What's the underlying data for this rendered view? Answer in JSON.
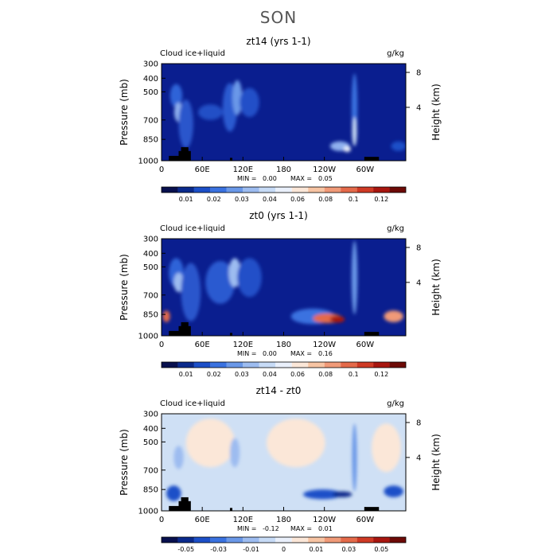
{
  "page_title": "SON",
  "chart_data": [
    {
      "type": "heatmap",
      "title": "zt14 (yrs 1-1)",
      "left_label": "Cloud ice+liquid",
      "right_label": "g/kg",
      "ylabel": "Pressure (mb)",
      "y2label": "Height (km)",
      "xticks": [
        "0",
        "60E",
        "120E",
        "180",
        "120W",
        "60W"
      ],
      "yticks": [
        "300",
        "400",
        "500",
        "700",
        "850",
        "1000"
      ],
      "y2ticks": [
        "8",
        "4"
      ],
      "stats": {
        "min_label": "MIN =",
        "min": "0.00",
        "max_label": "MAX =",
        "max": "0.05"
      },
      "colorbar": {
        "labels": [
          "0.01",
          "0.02",
          "0.03",
          "0.04",
          "0.06",
          "0.08",
          "0.1",
          "0.12"
        ],
        "colors": [
          "#08104e",
          "#0a2a8c",
          "#1c4fc8",
          "#3a72e0",
          "#6a98e8",
          "#9dbcf0",
          "#c7dbf6",
          "#eaf0fb",
          "#fbe7d8",
          "#f7c4a3",
          "#f09a78",
          "#e46a4a",
          "#cf3a25",
          "#a8160f",
          "#6d0a06"
        ]
      },
      "background": "#0a1e8f",
      "features": [
        {
          "x": 0.06,
          "y": 0.33,
          "rx": 0.025,
          "ry": 0.12,
          "color": "#2f63d8"
        },
        {
          "x": 0.07,
          "y": 0.5,
          "rx": 0.018,
          "ry": 0.1,
          "color": "#8fb0ee"
        },
        {
          "x": 0.1,
          "y": 0.62,
          "rx": 0.03,
          "ry": 0.25,
          "color": "#2a56cc"
        },
        {
          "x": 0.2,
          "y": 0.5,
          "rx": 0.05,
          "ry": 0.08,
          "color": "#244fc6"
        },
        {
          "x": 0.28,
          "y": 0.45,
          "rx": 0.03,
          "ry": 0.25,
          "color": "#2b5ad0"
        },
        {
          "x": 0.31,
          "y": 0.35,
          "rx": 0.02,
          "ry": 0.18,
          "color": "#6a98e8"
        },
        {
          "x": 0.36,
          "y": 0.4,
          "rx": 0.04,
          "ry": 0.15,
          "color": "#2450c8"
        },
        {
          "x": 0.79,
          "y": 0.45,
          "rx": 0.012,
          "ry": 0.35,
          "color": "#3a72e0"
        },
        {
          "x": 0.79,
          "y": 0.7,
          "rx": 0.01,
          "ry": 0.15,
          "color": "#c7dbf6"
        },
        {
          "x": 0.73,
          "y": 0.85,
          "rx": 0.04,
          "ry": 0.05,
          "color": "#8fb0ee"
        },
        {
          "x": 0.76,
          "y": 0.88,
          "rx": 0.015,
          "ry": 0.03,
          "color": "#eaf0fb"
        },
        {
          "x": 0.97,
          "y": 0.85,
          "rx": 0.03,
          "ry": 0.05,
          "color": "#1c4fc8"
        }
      ]
    },
    {
      "type": "heatmap",
      "title": "zt0 (yrs 1-1)",
      "left_label": "Cloud ice+liquid",
      "right_label": "g/kg",
      "ylabel": "Pressure (mb)",
      "y2label": "Height (km)",
      "xticks": [
        "0",
        "60E",
        "120E",
        "180",
        "120W",
        "60W"
      ],
      "yticks": [
        "300",
        "400",
        "500",
        "700",
        "850",
        "1000"
      ],
      "y2ticks": [
        "8",
        "4"
      ],
      "stats": {
        "min_label": "MIN =",
        "min": "0.00",
        "max_label": "MAX =",
        "max": "0.16"
      },
      "colorbar": {
        "labels": [
          "0.01",
          "0.02",
          "0.03",
          "0.04",
          "0.06",
          "0.08",
          "0.1",
          "0.12"
        ],
        "colors": [
          "#08104e",
          "#0a2a8c",
          "#1c4fc8",
          "#3a72e0",
          "#6a98e8",
          "#9dbcf0",
          "#c7dbf6",
          "#eaf0fb",
          "#fbe7d8",
          "#f7c4a3",
          "#f09a78",
          "#e46a4a",
          "#cf3a25",
          "#a8160f",
          "#6d0a06"
        ]
      },
      "background": "#0a1e8f",
      "features": [
        {
          "x": 0.06,
          "y": 0.35,
          "rx": 0.03,
          "ry": 0.15,
          "color": "#2f63d8"
        },
        {
          "x": 0.07,
          "y": 0.45,
          "rx": 0.02,
          "ry": 0.1,
          "color": "#9dbcf0"
        },
        {
          "x": 0.02,
          "y": 0.8,
          "rx": 0.015,
          "ry": 0.06,
          "color": "#e46a4a"
        },
        {
          "x": 0.12,
          "y": 0.55,
          "rx": 0.04,
          "ry": 0.3,
          "color": "#2a56cc"
        },
        {
          "x": 0.24,
          "y": 0.45,
          "rx": 0.06,
          "ry": 0.22,
          "color": "#2b5ad0"
        },
        {
          "x": 0.3,
          "y": 0.35,
          "rx": 0.025,
          "ry": 0.15,
          "color": "#9dbcf0"
        },
        {
          "x": 0.36,
          "y": 0.4,
          "rx": 0.05,
          "ry": 0.2,
          "color": "#2450c8"
        },
        {
          "x": 0.62,
          "y": 0.8,
          "rx": 0.09,
          "ry": 0.08,
          "color": "#3a72e0"
        },
        {
          "x": 0.68,
          "y": 0.82,
          "rx": 0.06,
          "ry": 0.05,
          "color": "#e46a4a"
        },
        {
          "x": 0.72,
          "y": 0.83,
          "rx": 0.03,
          "ry": 0.035,
          "color": "#a8160f"
        },
        {
          "x": 0.79,
          "y": 0.4,
          "rx": 0.012,
          "ry": 0.38,
          "color": "#6a98e8"
        },
        {
          "x": 0.95,
          "y": 0.8,
          "rx": 0.04,
          "ry": 0.06,
          "color": "#f09a78"
        }
      ]
    },
    {
      "type": "heatmap",
      "title": "zt14 - zt0",
      "left_label": "Cloud ice+liquid",
      "right_label": "g/kg",
      "ylabel": "Pressure (mb)",
      "y2label": "Height (km)",
      "xticks": [
        "0",
        "60E",
        "120E",
        "180",
        "120W",
        "60W"
      ],
      "yticks": [
        "300",
        "400",
        "500",
        "700",
        "850",
        "1000"
      ],
      "y2ticks": [
        "8",
        "4"
      ],
      "stats": {
        "min_label": "MIN =",
        "min": "-0.12",
        "max_label": "MAX =",
        "max": "0.01"
      },
      "colorbar": {
        "labels": [
          "-0.05",
          "-0.03",
          "-0.01",
          "0",
          "0.01",
          "0.03",
          "0.05"
        ],
        "colors": [
          "#08104e",
          "#0a2a8c",
          "#1c4fc8",
          "#3a72e0",
          "#6a98e8",
          "#9dbcf0",
          "#c7dbf6",
          "#eaf0fb",
          "#fbe7d8",
          "#f7c4a3",
          "#f09a78",
          "#e46a4a",
          "#cf3a25",
          "#a8160f",
          "#6d0a06"
        ]
      },
      "background": "#cfe0f5",
      "features": [
        {
          "x": 0.2,
          "y": 0.3,
          "rx": 0.1,
          "ry": 0.25,
          "color": "#fbe7d8"
        },
        {
          "x": 0.55,
          "y": 0.3,
          "rx": 0.12,
          "ry": 0.25,
          "color": "#fbe7d8"
        },
        {
          "x": 0.92,
          "y": 0.35,
          "rx": 0.06,
          "ry": 0.25,
          "color": "#fbe7d8"
        },
        {
          "x": 0.3,
          "y": 0.4,
          "rx": 0.02,
          "ry": 0.15,
          "color": "#9dbcf0"
        },
        {
          "x": 0.07,
          "y": 0.45,
          "rx": 0.02,
          "ry": 0.12,
          "color": "#9dbcf0"
        },
        {
          "x": 0.05,
          "y": 0.82,
          "rx": 0.03,
          "ry": 0.08,
          "color": "#1c4fc8"
        },
        {
          "x": 0.66,
          "y": 0.83,
          "rx": 0.08,
          "ry": 0.05,
          "color": "#1c4fc8"
        },
        {
          "x": 0.74,
          "y": 0.83,
          "rx": 0.04,
          "ry": 0.03,
          "color": "#0a2a8c"
        },
        {
          "x": 0.79,
          "y": 0.45,
          "rx": 0.01,
          "ry": 0.35,
          "color": "#6a98e8"
        },
        {
          "x": 0.95,
          "y": 0.8,
          "rx": 0.04,
          "ry": 0.06,
          "color": "#1c4fc8"
        }
      ]
    }
  ]
}
